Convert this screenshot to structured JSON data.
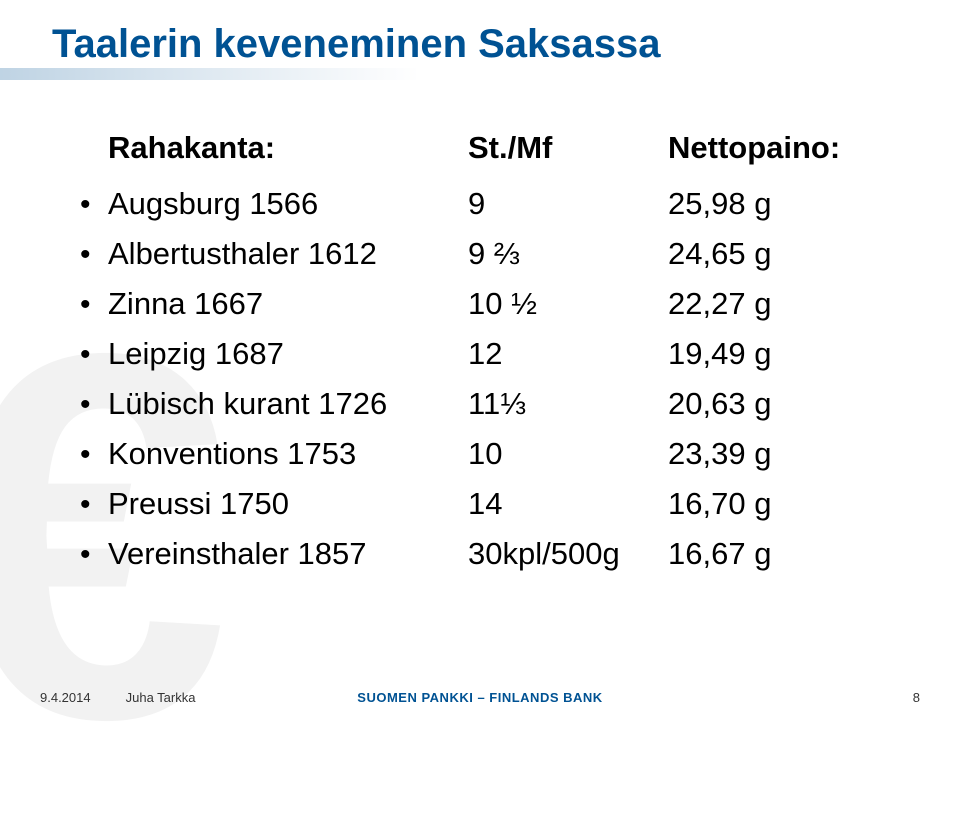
{
  "title": "Taalerin keveneminen Saksassa",
  "euro_glyph": "€",
  "colors": {
    "title": "#005293",
    "text": "#000000",
    "footer_brand": "#005293",
    "bg_euro": "#f2f2f2"
  },
  "table": {
    "header": {
      "c1": "Rahakanta:",
      "c2": "St./Mf",
      "c3": "Nettopaino:"
    },
    "rows": [
      {
        "c1": "Augsburg 1566",
        "c2": "9",
        "c3": "25,98 g"
      },
      {
        "c1": "Albertusthaler 1612",
        "c2": "9 ⅔",
        "c3": "24,65 g"
      },
      {
        "c1": "Zinna 1667",
        "c2": "10 ½",
        "c3": "22,27 g"
      },
      {
        "c1": "Leipzig 1687",
        "c2": "12",
        "c3": "19,49 g"
      },
      {
        "c1": "Lübisch kurant 1726",
        "c2": "11⅓",
        "c3": "20,63 g"
      },
      {
        "c1": "Konventions 1753",
        "c2": "10",
        "c3": "23,39 g"
      },
      {
        "c1": "Preussi 1750",
        "c2": "14",
        "c3": "16,70 g"
      },
      {
        "c1": "Vereinsthaler 1857",
        "c2": "30kpl/500g",
        "c3": "16,67 g"
      }
    ]
  },
  "footer": {
    "date": "9.4.2014",
    "author": "Juha Tarkka",
    "brand": "SUOMEN PANKKI – FINLANDS BANK",
    "page": "8"
  }
}
